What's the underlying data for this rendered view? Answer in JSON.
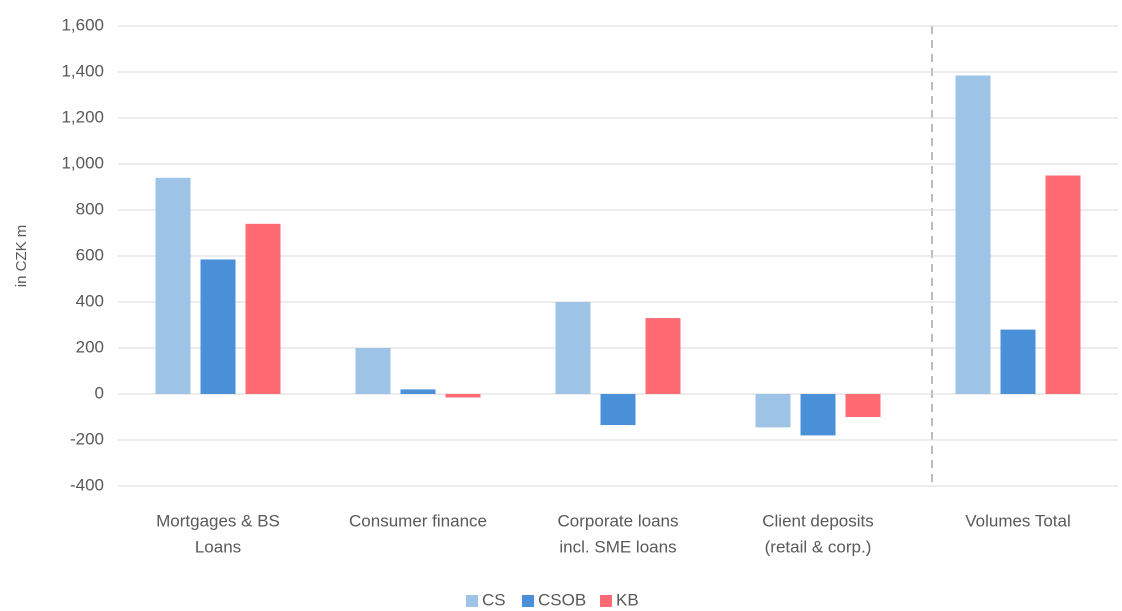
{
  "chart_data": {
    "type": "bar",
    "y_label": "in CZK m",
    "categories": [
      [
        "Mortgages & BS",
        "Loans"
      ],
      [
        "Consumer finance"
      ],
      [
        "Corporate loans",
        "incl. SME loans"
      ],
      [
        "Client deposits",
        "(retail & corp.)"
      ],
      [
        "Volumes Total"
      ]
    ],
    "series": [
      {
        "name": "CS",
        "color": "#9dc3e6",
        "values": [
          940,
          200,
          400,
          -145,
          1385
        ]
      },
      {
        "name": "CSOB",
        "color": "#4a90d9",
        "values": [
          585,
          20,
          -135,
          -180,
          280
        ]
      },
      {
        "name": "KB",
        "color": "#ff6b72",
        "values": [
          740,
          -15,
          330,
          -100,
          950
        ]
      }
    ],
    "ylim": [
      -400,
      1600
    ],
    "yticks": [
      -400,
      -200,
      0,
      200,
      400,
      600,
      800,
      {
        "value": 1000,
        "label": "1,000"
      },
      {
        "value": 1200,
        "label": "1,200"
      },
      {
        "value": 1400,
        "label": "1,400"
      },
      {
        "value": 1600,
        "label": "1,600"
      }
    ],
    "grid": true
  }
}
